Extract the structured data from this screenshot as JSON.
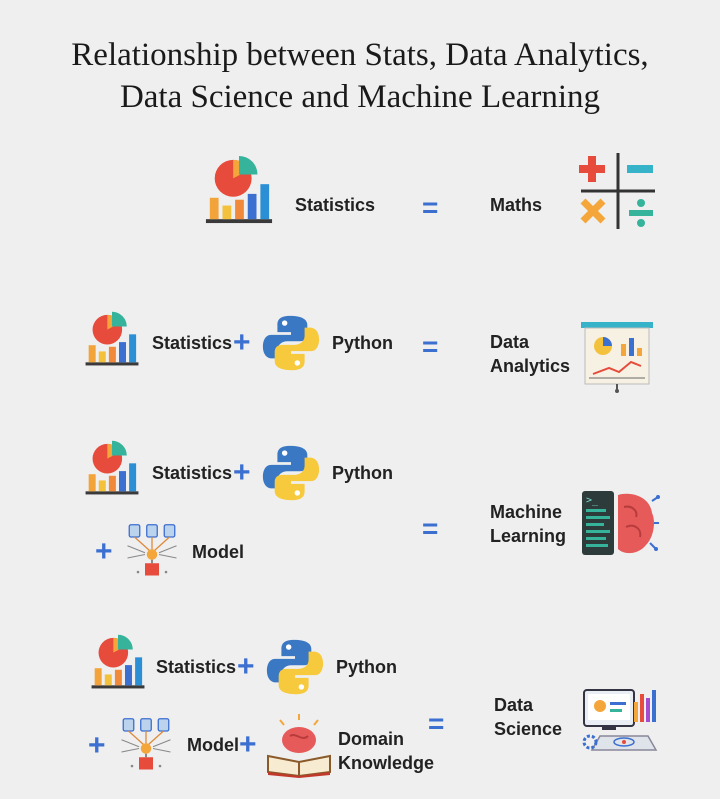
{
  "title": {
    "line1": "Relationship between Stats, Data Analytics,",
    "line2": "Data Science and Machine Learning"
  },
  "symbols": {
    "plus": "+",
    "equals": "="
  },
  "rows": {
    "row1": {
      "term": "Statistics",
      "result": "Maths",
      "icons": [
        "statistics-chart-icon",
        "math-operators-icon"
      ]
    },
    "row2": {
      "terms": [
        "Statistics",
        "Python"
      ],
      "result_line1": "Data",
      "result_line2": "Analytics",
      "icons": [
        "statistics-chart-icon",
        "python-logo-icon",
        "presentation-board-icon"
      ]
    },
    "row3": {
      "terms": [
        "Statistics",
        "Python",
        "Model"
      ],
      "result_line1": "Machine",
      "result_line2": "Learning",
      "icons": [
        "statistics-chart-icon",
        "python-logo-icon",
        "model-network-icon",
        "brain-code-icon"
      ]
    },
    "row4": {
      "terms": [
        "Statistics",
        "Python",
        "Model"
      ],
      "domain_line1": "Domain",
      "domain_line2": "Knowledge",
      "result_line1": "Data",
      "result_line2": "Science",
      "icons": [
        "statistics-chart-icon",
        "python-logo-icon",
        "model-network-icon",
        "book-brain-icon",
        "data-science-screen-icon"
      ]
    }
  }
}
